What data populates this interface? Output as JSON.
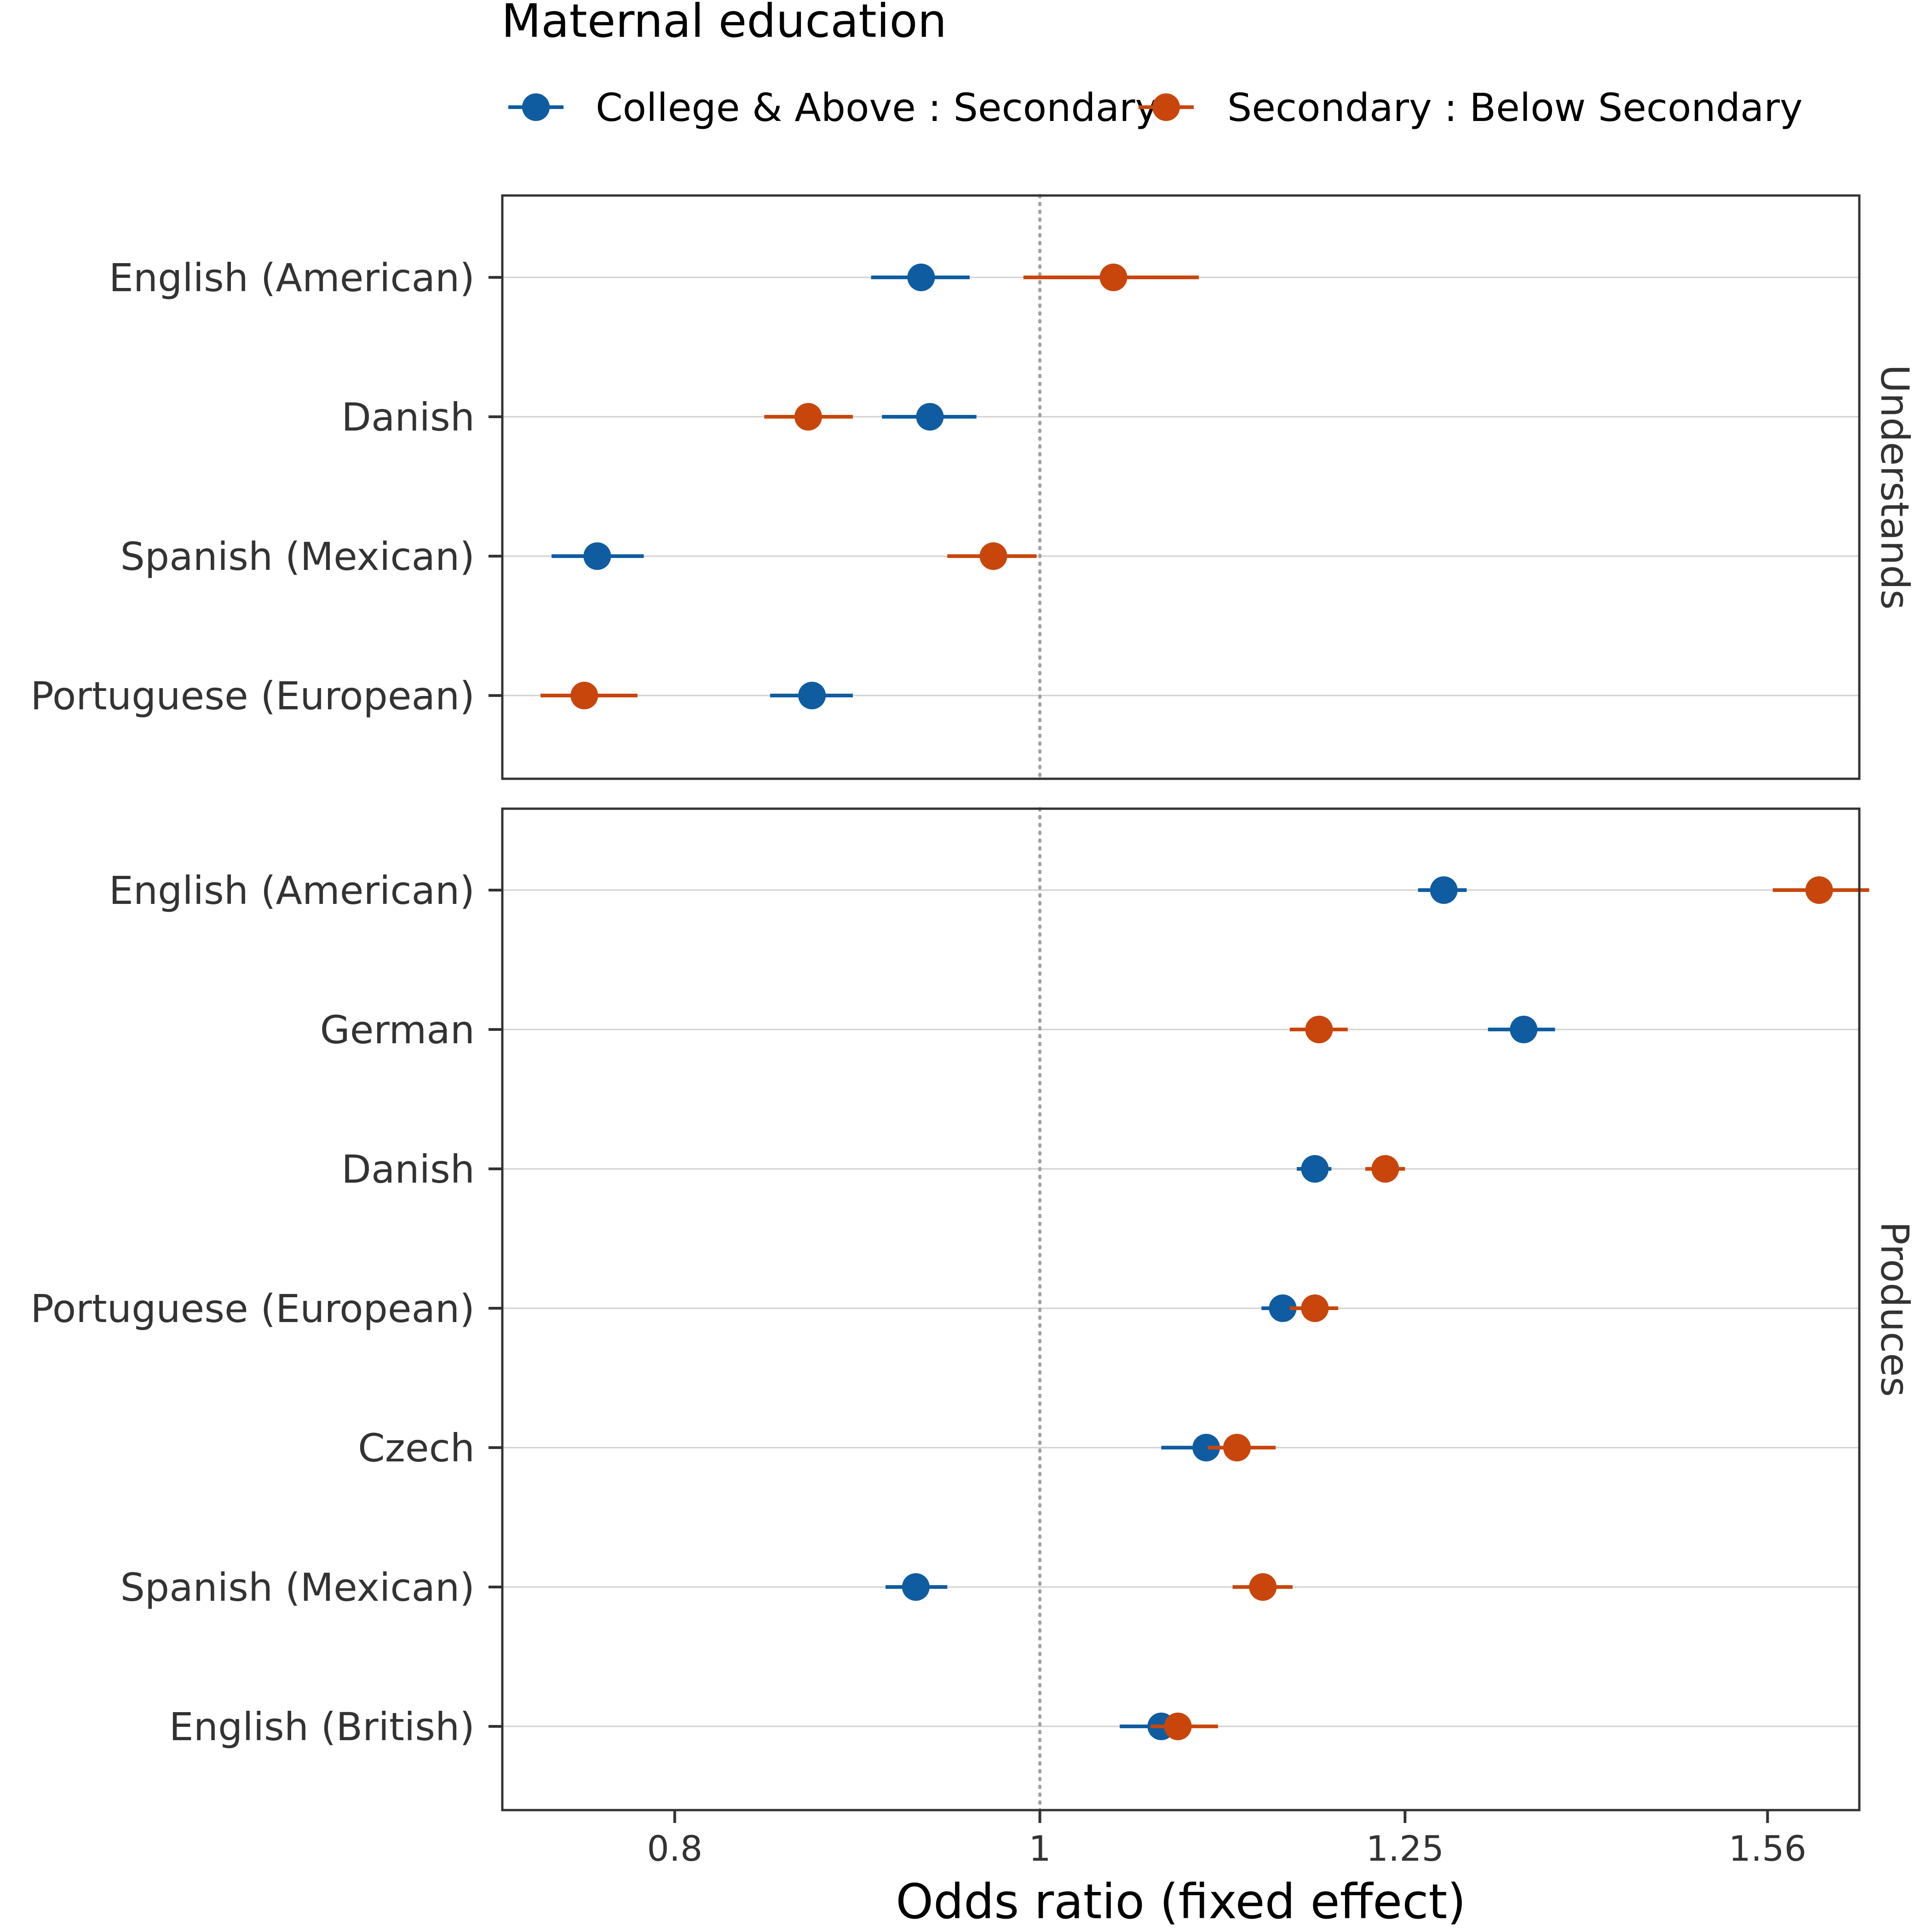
{
  "chart_data": {
    "type": "scatter",
    "subtype": "forest plot (point estimate with interval), log-scaled x axis",
    "xlabel": "Odds ratio (fixed effect)",
    "x_scale": "log",
    "xlim": [
      0.72,
      1.65
    ],
    "xticks": [
      {
        "value": 0.8,
        "label": "0.8"
      },
      {
        "value": 1.0,
        "label": "1"
      },
      {
        "value": 1.25,
        "label": "1.25"
      },
      {
        "value": 1.56,
        "label": "1.56"
      }
    ],
    "reference_line": {
      "value": 1.0,
      "style": "dotted",
      "color": "#a0a0a0"
    },
    "legend": {
      "title": "Maternal education",
      "position": "top",
      "entries": [
        {
          "name": "College & Above : Secondary",
          "color": "#0f5ca1"
        },
        {
          "name": "Secondary : Below Secondary",
          "color": "#c8460c"
        }
      ]
    },
    "grid": "horizontal major lines only",
    "panels": [
      {
        "strip_label": "Understands",
        "categories": [
          "English (American)",
          "Danish",
          "Spanish (Mexican)",
          "Portuguese (European)"
        ],
        "series": [
          {
            "name": "College & Above : Secondary",
            "estimate": [
              0.93,
              0.935,
              0.763,
              0.87
            ],
            "lower": [
              0.902,
              0.908,
              0.742,
              0.848
            ],
            "upper": [
              0.958,
              0.962,
              0.785,
              0.892
            ]
          },
          {
            "name": "Secondary : Below Secondary",
            "estimate": [
              1.046,
              0.868,
              0.972,
              0.757
            ],
            "lower": [
              0.99,
              0.845,
              0.945,
              0.737
            ],
            "upper": [
              1.102,
              0.892,
              0.998,
              0.782
            ]
          }
        ]
      },
      {
        "strip_label": "Produces",
        "categories": [
          "English (American)",
          "German",
          "Danish",
          "Portuguese (European)",
          "Czech",
          "Spanish (Mexican)",
          "English (British)"
        ],
        "series": [
          {
            "name": "College & Above : Secondary",
            "estimate": [
              1.28,
              1.344,
              1.183,
              1.16,
              1.107,
              0.927,
              1.077
            ],
            "lower": [
              1.26,
              1.315,
              1.17,
              1.145,
              1.077,
              0.91,
              1.05
            ],
            "upper": [
              1.298,
              1.37,
              1.195,
              1.175,
              1.135,
              0.945,
              1.105
            ]
          },
          {
            "name": "Secondary : Below Secondary",
            "estimate": [
              1.61,
              1.186,
              1.235,
              1.183,
              1.128,
              1.146,
              1.088
            ],
            "lower": [
              1.565,
              1.165,
              1.22,
              1.165,
              1.108,
              1.125,
              1.07
            ],
            "upper": [
              1.66,
              1.207,
              1.25,
              1.2,
              1.155,
              1.167,
              1.115
            ]
          }
        ]
      }
    ]
  }
}
